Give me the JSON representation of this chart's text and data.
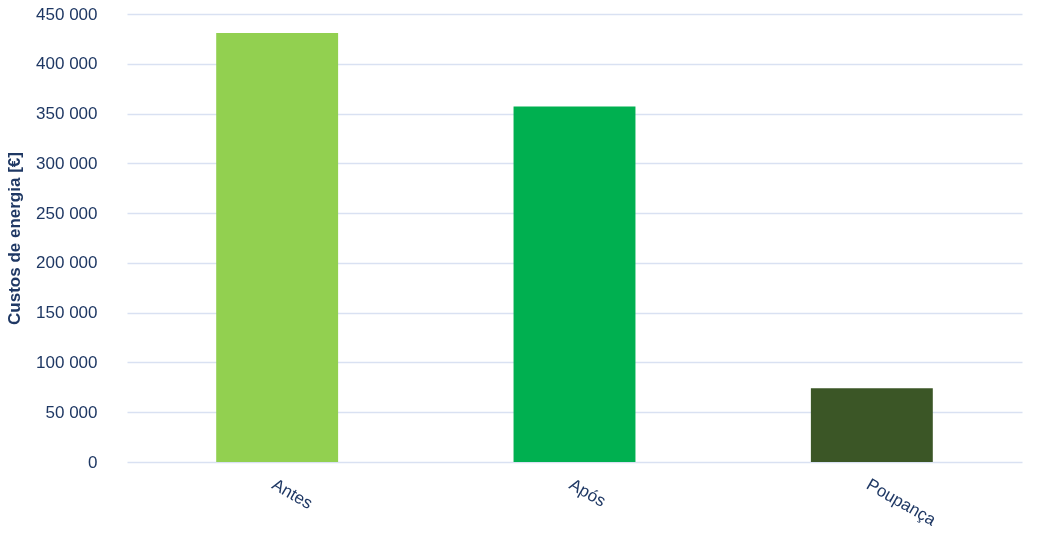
{
  "chart_data": {
    "type": "bar",
    "ylabel": "Custos de energia [€]",
    "categories": [
      "Antes",
      "Após",
      "Poupança"
    ],
    "values": [
      431000,
      357000,
      74000
    ],
    "colors": [
      "#92d050",
      "#00b050",
      "#3b5626"
    ],
    "ylim": [
      0,
      450000
    ],
    "yticks": [
      {
        "value": 0,
        "label": "0"
      },
      {
        "value": 50000,
        "label": "50 000"
      },
      {
        "value": 100000,
        "label": "100 000"
      },
      {
        "value": 150000,
        "label": "150 000"
      },
      {
        "value": 200000,
        "label": "200 000"
      },
      {
        "value": 250000,
        "label": "250 000"
      },
      {
        "value": 300000,
        "label": "300 000"
      },
      {
        "value": 350000,
        "label": "350 000"
      },
      {
        "value": 400000,
        "label": "400 000"
      },
      {
        "value": 450000,
        "label": "450 000"
      }
    ],
    "grid": "y"
  }
}
